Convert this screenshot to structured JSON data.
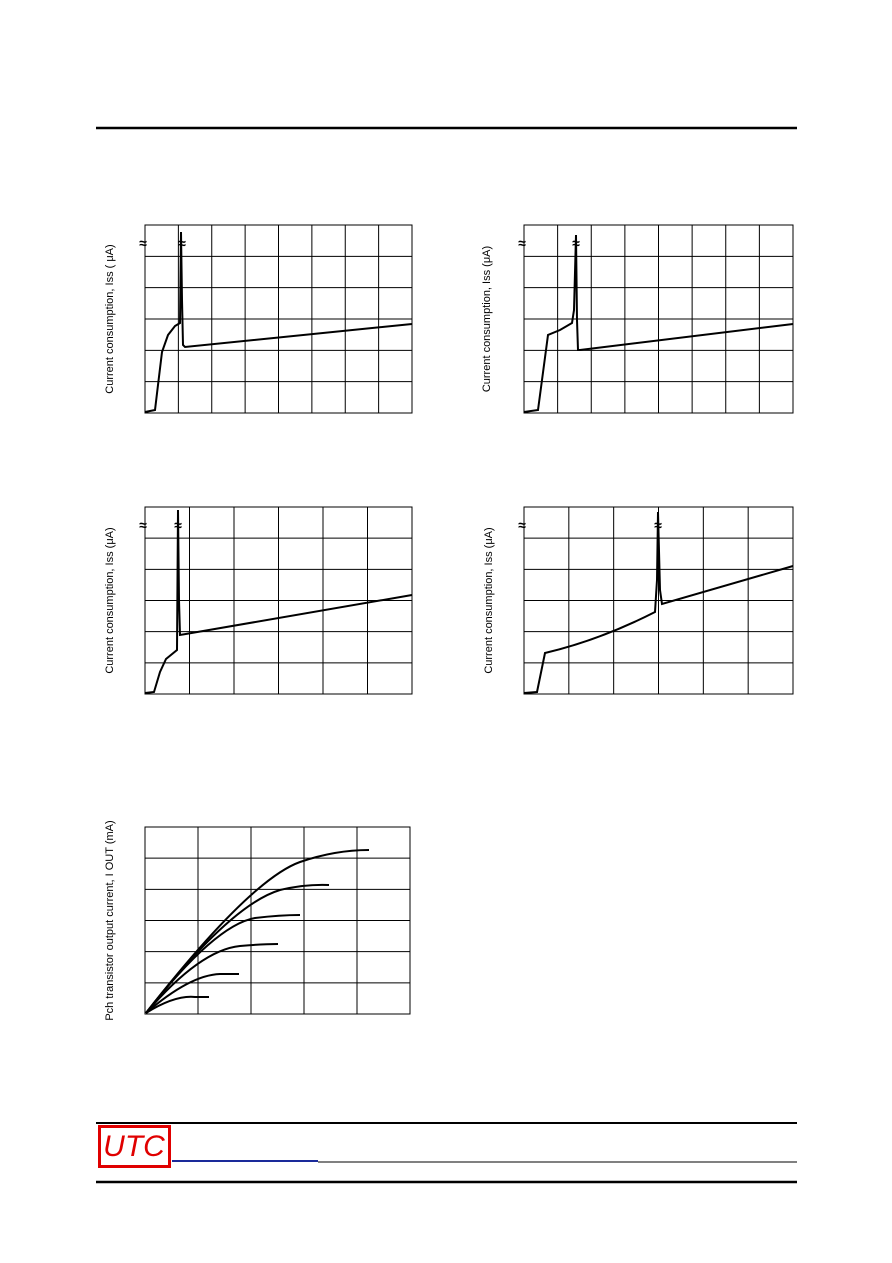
{
  "charts": [
    {
      "y_label": "Current consumption, Iss (  μA)"
    },
    {
      "y_label": "Current consumption, Iss (μA)"
    },
    {
      "y_label": "Current consumption, Iss (μA)"
    },
    {
      "y_label": "Current consumption, Iss (μA)"
    },
    {
      "y_label": "Pch transistor output current, I  OUT (mA)"
    }
  ],
  "break_mark": "≈",
  "footer": {
    "logo": "UTC"
  }
}
